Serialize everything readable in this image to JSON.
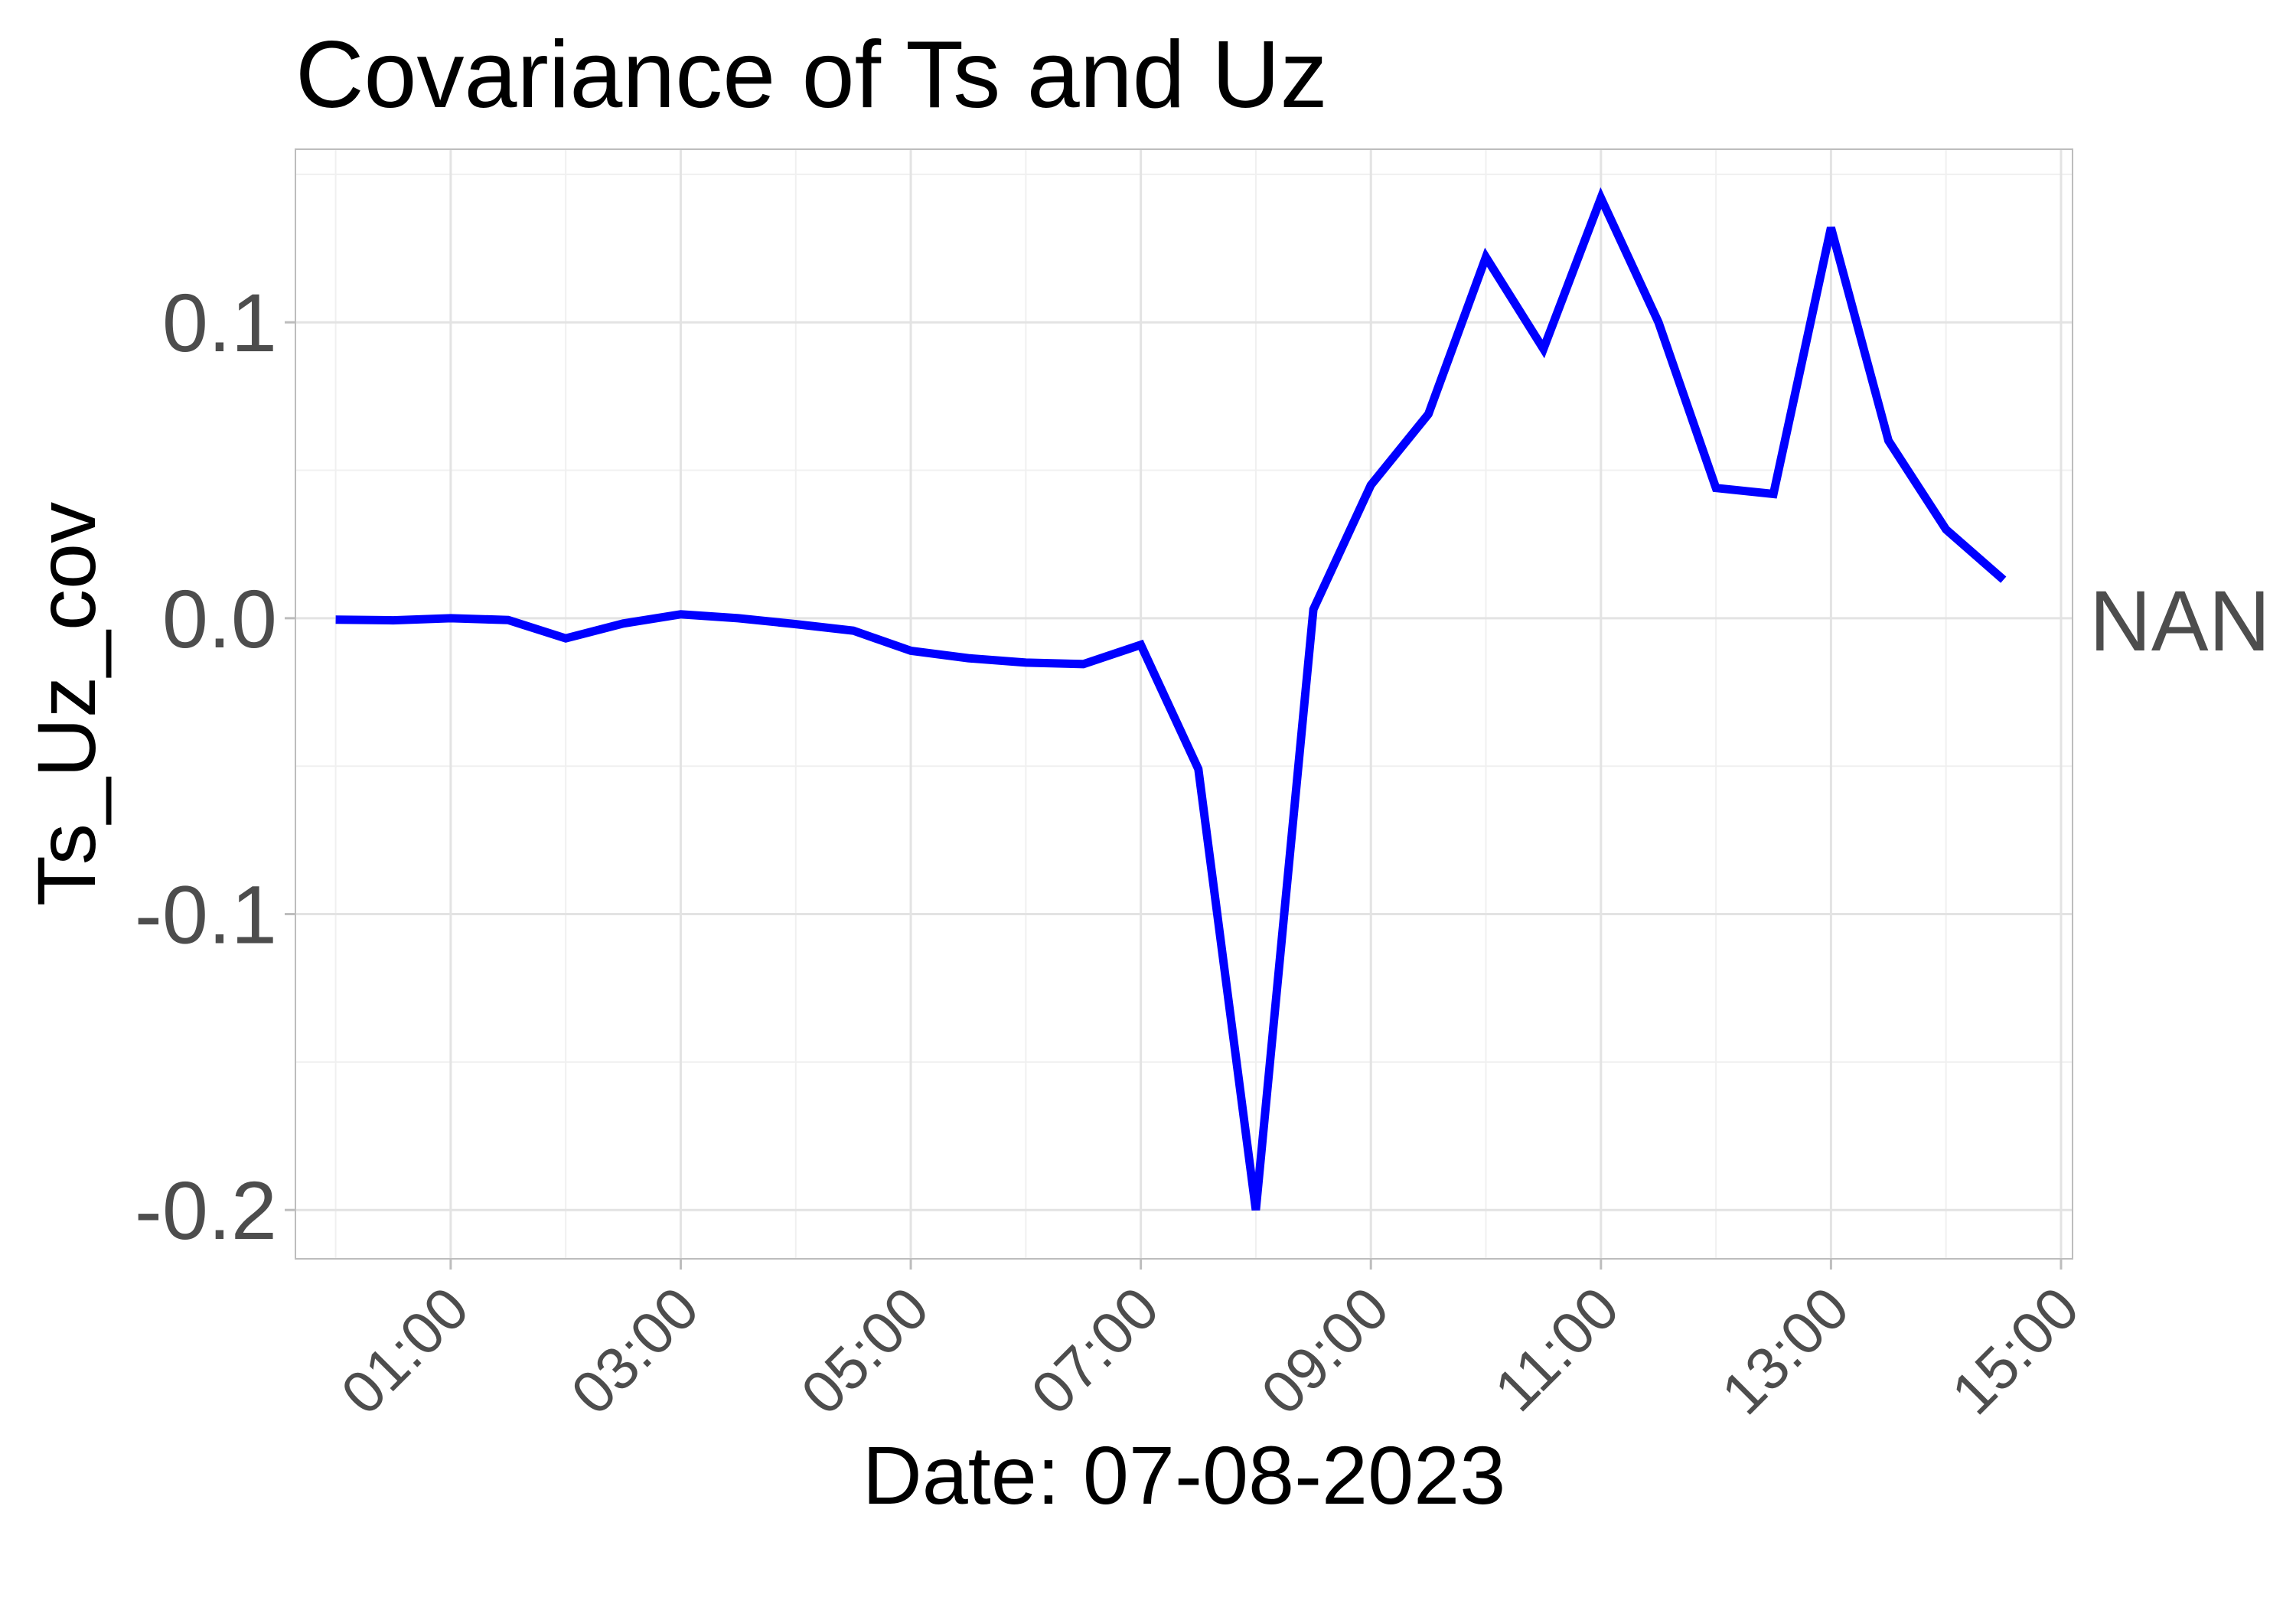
{
  "chart_data": {
    "type": "line",
    "title": "Covariance of Ts and Uz",
    "xlabel": "Date: 07-08-2023",
    "ylabel": "Ts_Uz_cov",
    "secondary_label": "NAN",
    "x_ticks": [
      "01:00",
      "03:00",
      "05:00",
      "07:00",
      "09:00",
      "11:00",
      "13:00",
      "15:00"
    ],
    "y_ticks": [
      "-0.2",
      "-0.1",
      "0.0",
      "0.1"
    ],
    "xlim": [
      "00:00",
      "15:00"
    ],
    "ylim": [
      -0.2,
      0.14
    ],
    "grid": true,
    "line_color": "#0000ff",
    "series": [
      {
        "x": [
          "00:00",
          "00:30",
          "01:00",
          "01:30",
          "02:00",
          "02:30",
          "03:00",
          "03:30",
          "04:00",
          "04:30",
          "05:00",
          "05:30",
          "06:00",
          "06:30",
          "07:00",
          "07:30",
          "08:00",
          "08:30",
          "09:00",
          "09:30",
          "10:00",
          "10:30",
          "11:00",
          "11:30",
          "12:00",
          "12:30",
          "13:00",
          "13:30",
          "14:00",
          "14:30"
        ],
        "values": [
          -0.0005,
          -0.0007,
          0.0,
          -0.0006,
          -0.0068,
          -0.0018,
          0.0013,
          0.0,
          -0.002,
          -0.0042,
          -0.011,
          -0.0135,
          -0.015,
          -0.0155,
          -0.009,
          -0.051,
          -0.2,
          0.003,
          0.045,
          0.069,
          0.122,
          0.091,
          0.142,
          0.1,
          0.044,
          0.042,
          0.132,
          0.06,
          0.03,
          0.013
        ]
      }
    ]
  }
}
